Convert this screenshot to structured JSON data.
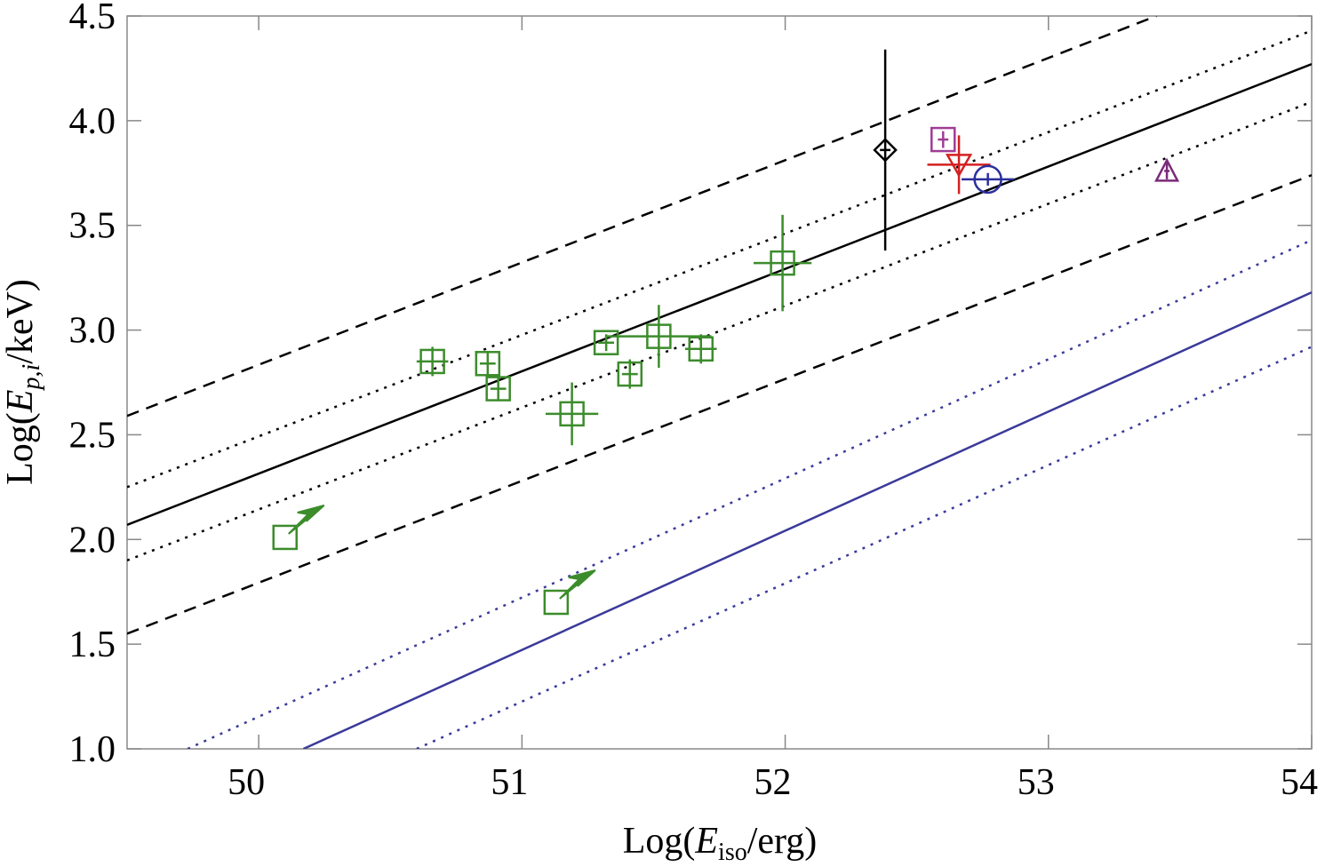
{
  "chart_data": {
    "type": "scatter",
    "xlabel": [
      "Log(",
      "E",
      "iso",
      "/erg)"
    ],
    "ylabel": [
      "Log(",
      "E",
      "p,i",
      "/keV)"
    ],
    "xlim": [
      49.5,
      54
    ],
    "ylim": [
      1,
      4.5
    ],
    "xticks": [
      50,
      51,
      52,
      53,
      54
    ],
    "yticks": [
      {
        "value": 1,
        "label": "1.0"
      },
      {
        "value": 1.5,
        "label": "1.5"
      },
      {
        "value": 2,
        "label": "2.0"
      },
      {
        "value": 2.5,
        "label": "2.5"
      },
      {
        "value": 3,
        "label": "3.0"
      },
      {
        "value": 3.5,
        "label": "3.5"
      },
      {
        "value": 4,
        "label": "4.0"
      },
      {
        "value": 4.5,
        "label": "4.5"
      }
    ],
    "lines": [
      {
        "x": [
          49.5,
          53.41
        ],
        "y": [
          2.59,
          4.5
        ],
        "color": "#000000",
        "dash": "dashed"
      },
      {
        "x": [
          49.5,
          54
        ],
        "y": [
          2.25,
          4.43
        ],
        "color": "#000000",
        "dash": "dotted"
      },
      {
        "x": [
          49.5,
          54
        ],
        "y": [
          2.07,
          4.27
        ],
        "color": "#000000",
        "dash": "solid"
      },
      {
        "x": [
          49.5,
          54
        ],
        "y": [
          1.9,
          4.09
        ],
        "color": "#000000",
        "dash": "dotted"
      },
      {
        "x": [
          49.5,
          54
        ],
        "y": [
          1.55,
          3.74
        ],
        "color": "#000000",
        "dash": "dashed"
      },
      {
        "x": [
          49.73,
          54
        ],
        "y": [
          1,
          3.43
        ],
        "color": "#3a3a9a",
        "dash": "dotted"
      },
      {
        "x": [
          50.17,
          54
        ],
        "y": [
          1,
          3.18
        ],
        "color": "#3a3a9a",
        "dash": "solid"
      },
      {
        "x": [
          50.6,
          54
        ],
        "y": [
          1,
          2.92
        ],
        "color": "#3a3a9a",
        "dash": "dotted"
      }
    ],
    "points": [
      {
        "x": 50.66,
        "y": 2.85,
        "xerr": 0.06,
        "yerr": 0.07,
        "marker": "square",
        "color": "#3c8c2c"
      },
      {
        "x": 50.87,
        "y": 2.84,
        "xerr": 0.03,
        "yerr": 0.06,
        "marker": "square",
        "color": "#3c8c2c"
      },
      {
        "x": 50.91,
        "y": 2.72,
        "xerr": 0.03,
        "yerr": 0.06,
        "marker": "square",
        "color": "#3c8c2c"
      },
      {
        "x": 51.19,
        "y": 2.6,
        "xerr": 0.1,
        "yerr": 0.15,
        "marker": "square",
        "color": "#3c8c2c"
      },
      {
        "x": 51.32,
        "y": 2.94,
        "xerr": 0.03,
        "yerr": 0.04,
        "marker": "square",
        "color": "#3c8c2c"
      },
      {
        "x": 51.41,
        "y": 2.79,
        "xerr": 0.03,
        "yerr": 0.07,
        "marker": "square",
        "color": "#3c8c2c"
      },
      {
        "x": 51.52,
        "y": 2.97,
        "xerr": 0.2,
        "yerr": 0.15,
        "marker": "square",
        "color": "#3c8c2c"
      },
      {
        "x": 51.68,
        "y": 2.91,
        "xerr": 0.06,
        "yerr": 0.07,
        "marker": "square",
        "color": "#3c8c2c"
      },
      {
        "x": 51.99,
        "y": 3.32,
        "xerr": 0.11,
        "yerr": 0.23,
        "marker": "square",
        "color": "#3c8c2c"
      },
      {
        "x": 50.1,
        "y": 2.01,
        "marker": "square",
        "color": "#3c8c2c",
        "limit": "lower"
      },
      {
        "x": 51.13,
        "y": 1.7,
        "marker": "square",
        "color": "#3c8c2c",
        "limit": "lower"
      },
      {
        "x": 52.38,
        "y": 3.86,
        "xerr": 0.02,
        "yerr": 0.48,
        "marker": "diamond",
        "color": "#000000"
      },
      {
        "x": 52.6,
        "y": 3.91,
        "xerr": 0.02,
        "yerr": 0.04,
        "marker": "square",
        "color": "#a03c96"
      },
      {
        "x": 52.66,
        "y": 3.79,
        "xerr": 0.12,
        "yerr": 0.14,
        "marker": "triangle-down",
        "color": "#d42020"
      },
      {
        "x": 52.77,
        "y": 3.72,
        "xerr": 0.1,
        "yerr": 0.03,
        "marker": "circle",
        "color": "#2b2f9c"
      },
      {
        "x": 53.45,
        "y": 3.76,
        "xerr": 0.01,
        "yerr": 0.04,
        "marker": "triangle-up",
        "color": "#7a2a7a"
      }
    ]
  }
}
